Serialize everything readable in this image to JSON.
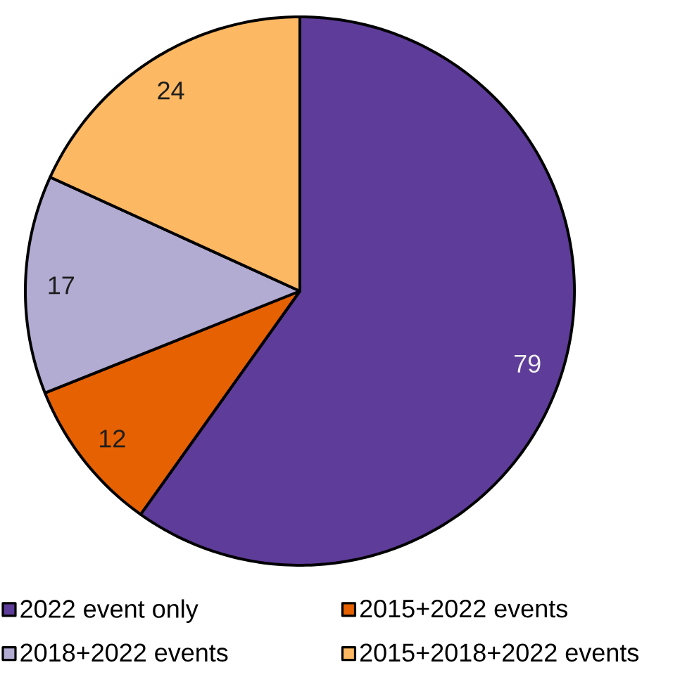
{
  "chart_data": {
    "type": "pie",
    "categories": [
      "2022 event only",
      "2015+2022 events",
      "2018+2022 events",
      "2015+2018+2022 events"
    ],
    "values": [
      79,
      12,
      17,
      24
    ],
    "colors": [
      "#5e3c99",
      "#e66101",
      "#b2abd2",
      "#fdb863"
    ],
    "data_labels": true,
    "legend": "bottom"
  }
}
